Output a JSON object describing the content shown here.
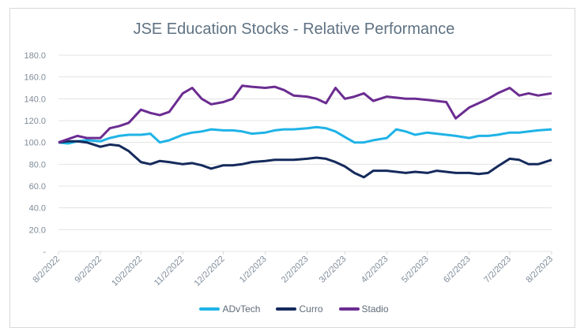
{
  "chart_data": {
    "type": "line",
    "title": "JSE Education Stocks - Relative Performance",
    "xlabel": "",
    "ylabel": "",
    "ylim": [
      0,
      180
    ],
    "yticks": [
      "-",
      "20.0",
      "40.0",
      "60.0",
      "80.0",
      "100.0",
      "120.0",
      "140.0",
      "160.0",
      "180.0"
    ],
    "xticks": [
      "8/2/2022",
      "9/2/2022",
      "10/2/2022",
      "11/2/2022",
      "12/2/2022",
      "1/2/2023",
      "2/2/2023",
      "3/2/2023",
      "4/2/2023",
      "5/2/2023",
      "6/2/2023",
      "7/2/2023",
      "8/2/2023"
    ],
    "grid": true,
    "legend": "bottom",
    "x": [
      "2022-08-02",
      "2022-08-09",
      "2022-08-16",
      "2022-08-23",
      "2022-09-02",
      "2022-09-09",
      "2022-09-16",
      "2022-09-23",
      "2022-10-02",
      "2022-10-09",
      "2022-10-16",
      "2022-10-23",
      "2022-11-02",
      "2022-11-09",
      "2022-11-16",
      "2022-11-23",
      "2022-12-02",
      "2022-12-09",
      "2022-12-16",
      "2022-12-23",
      "2023-01-02",
      "2023-01-09",
      "2023-01-16",
      "2023-01-23",
      "2023-02-02",
      "2023-02-09",
      "2023-02-16",
      "2023-02-23",
      "2023-03-02",
      "2023-03-09",
      "2023-03-16",
      "2023-03-23",
      "2023-04-02",
      "2023-04-09",
      "2023-04-16",
      "2023-04-23",
      "2023-05-02",
      "2023-05-09",
      "2023-05-16",
      "2023-05-23",
      "2023-06-02",
      "2023-06-09",
      "2023-06-16",
      "2023-06-23",
      "2023-07-02",
      "2023-07-09",
      "2023-07-16",
      "2023-07-23",
      "2023-08-02"
    ],
    "series": [
      {
        "name": "ADvTech",
        "color": "#1fb3e6",
        "values": [
          100,
          99,
          101,
          102,
          101,
          104,
          106,
          107,
          107,
          108,
          100,
          102,
          107,
          109,
          110,
          112,
          111,
          111,
          110,
          108,
          109,
          111,
          112,
          112,
          113,
          114,
          113,
          110,
          105,
          100,
          100,
          102,
          104,
          112,
          110,
          107,
          109,
          108,
          107,
          106,
          104,
          106,
          106,
          107,
          109,
          109,
          110,
          111,
          112
        ]
      },
      {
        "name": "Curro",
        "color": "#152a5c",
        "values": [
          100,
          101,
          101,
          100,
          96,
          98,
          97,
          92,
          82,
          80,
          83,
          82,
          80,
          81,
          79,
          76,
          79,
          79,
          80,
          82,
          83,
          84,
          84,
          84,
          85,
          86,
          85,
          82,
          78,
          72,
          68,
          74,
          74,
          73,
          72,
          73,
          72,
          74,
          73,
          72,
          72,
          71,
          72,
          78,
          85,
          84,
          80,
          80,
          84
        ]
      },
      {
        "name": "Stadio",
        "color": "#6b2c91",
        "values": [
          100,
          103,
          106,
          104,
          104,
          113,
          115,
          118,
          130,
          127,
          125,
          128,
          145,
          150,
          140,
          135,
          137,
          140,
          152,
          151,
          150,
          151,
          148,
          143,
          142,
          140,
          136,
          150,
          140,
          142,
          145,
          138,
          142,
          141,
          140,
          140,
          139,
          138,
          137,
          122,
          132,
          136,
          140,
          145,
          150,
          143,
          145,
          143,
          145
        ]
      }
    ]
  }
}
